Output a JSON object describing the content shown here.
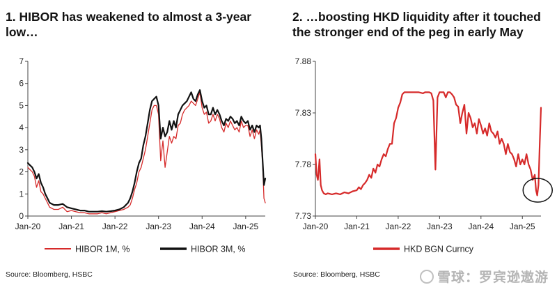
{
  "chart_data": [
    {
      "type": "line",
      "title": "1. HIBOR has weakened to almost a 3-year low…",
      "title_lines": [
        "1. HIBOR has weakened to almost a 3-year",
        "low…"
      ],
      "xlabel": "",
      "ylabel": "",
      "x_ticks": [
        "Jan-20",
        "Jan-21",
        "Jan-22",
        "Jan-23",
        "Jan-24",
        "Jan-25"
      ],
      "x_range": [
        2020.0,
        2025.45
      ],
      "ylim": [
        0,
        7
      ],
      "y_ticks": [
        "0",
        "1",
        "2",
        "3",
        "4",
        "5",
        "6",
        "7"
      ],
      "source": "Source: Bloomberg, HSBC",
      "series": [
        {
          "name": "HIBOR 1M, %",
          "color": "#d62a2a",
          "x": [
            2020.0,
            2020.05,
            2020.1,
            2020.15,
            2020.2,
            2020.25,
            2020.3,
            2020.35,
            2020.4,
            2020.45,
            2020.5,
            2020.6,
            2020.7,
            2020.8,
            2020.9,
            2021.0,
            2021.1,
            2021.2,
            2021.3,
            2021.4,
            2021.5,
            2021.6,
            2021.7,
            2021.8,
            2021.9,
            2022.0,
            2022.1,
            2022.2,
            2022.3,
            2022.35,
            2022.4,
            2022.45,
            2022.5,
            2022.55,
            2022.6,
            2022.65,
            2022.7,
            2022.75,
            2022.8,
            2022.85,
            2022.9,
            2022.95,
            2023.0,
            2023.05,
            2023.1,
            2023.15,
            2023.2,
            2023.25,
            2023.3,
            2023.35,
            2023.4,
            2023.45,
            2023.5,
            2023.55,
            2023.6,
            2023.65,
            2023.7,
            2023.75,
            2023.8,
            2023.85,
            2023.9,
            2023.95,
            2024.0,
            2024.05,
            2024.1,
            2024.15,
            2024.2,
            2024.25,
            2024.3,
            2024.35,
            2024.4,
            2024.45,
            2024.5,
            2024.55,
            2024.6,
            2024.65,
            2024.7,
            2024.75,
            2024.8,
            2024.85,
            2024.9,
            2024.95,
            2025.0,
            2025.05,
            2025.1,
            2025.15,
            2025.2,
            2025.25,
            2025.3,
            2025.33,
            2025.36,
            2025.39,
            2025.42,
            2025.45
          ],
          "y": [
            2.2,
            2.1,
            2.0,
            1.8,
            1.3,
            1.6,
            1.1,
            1.0,
            0.8,
            0.6,
            0.4,
            0.3,
            0.3,
            0.4,
            0.2,
            0.25,
            0.2,
            0.15,
            0.15,
            0.1,
            0.1,
            0.1,
            0.15,
            0.1,
            0.15,
            0.2,
            0.25,
            0.3,
            0.4,
            0.5,
            0.8,
            1.2,
            1.5,
            2.0,
            2.2,
            2.6,
            3.0,
            3.6,
            4.2,
            4.8,
            5.0,
            5.0,
            4.6,
            2.5,
            3.4,
            2.2,
            2.9,
            3.6,
            3.3,
            3.6,
            3.5,
            4.1,
            4.2,
            4.6,
            4.8,
            4.9,
            5.0,
            5.2,
            5.1,
            5.0,
            5.3,
            5.6,
            4.9,
            4.6,
            4.7,
            4.2,
            4.3,
            4.6,
            4.3,
            4.6,
            4.4,
            4.0,
            3.8,
            4.2,
            4.0,
            4.3,
            4.1,
            3.9,
            4.0,
            3.8,
            4.3,
            4.0,
            4.1,
            4.1,
            3.6,
            3.9,
            3.5,
            3.9,
            3.7,
            3.9,
            3.2,
            2.4,
            0.8,
            0.6
          ]
        },
        {
          "name": "HIBOR 3M, %",
          "color": "#111111",
          "x": [
            2020.0,
            2020.05,
            2020.1,
            2020.15,
            2020.2,
            2020.25,
            2020.3,
            2020.35,
            2020.4,
            2020.45,
            2020.5,
            2020.6,
            2020.7,
            2020.8,
            2020.9,
            2021.0,
            2021.1,
            2021.2,
            2021.3,
            2021.4,
            2021.5,
            2021.6,
            2021.7,
            2021.8,
            2021.9,
            2022.0,
            2022.1,
            2022.2,
            2022.3,
            2022.35,
            2022.4,
            2022.45,
            2022.5,
            2022.55,
            2022.6,
            2022.65,
            2022.7,
            2022.75,
            2022.8,
            2022.85,
            2022.9,
            2022.95,
            2023.0,
            2023.05,
            2023.1,
            2023.15,
            2023.2,
            2023.25,
            2023.3,
            2023.35,
            2023.4,
            2023.45,
            2023.5,
            2023.55,
            2023.6,
            2023.65,
            2023.7,
            2023.75,
            2023.8,
            2023.85,
            2023.9,
            2023.95,
            2024.0,
            2024.05,
            2024.1,
            2024.15,
            2024.2,
            2024.25,
            2024.3,
            2024.35,
            2024.4,
            2024.45,
            2024.5,
            2024.55,
            2024.6,
            2024.65,
            2024.7,
            2024.75,
            2024.8,
            2024.85,
            2024.9,
            2024.95,
            2025.0,
            2025.05,
            2025.1,
            2025.15,
            2025.2,
            2025.25,
            2025.3,
            2025.33,
            2025.36,
            2025.39,
            2025.42,
            2025.45
          ],
          "y": [
            2.4,
            2.3,
            2.2,
            2.0,
            1.7,
            1.9,
            1.5,
            1.3,
            1.0,
            0.8,
            0.6,
            0.5,
            0.5,
            0.55,
            0.4,
            0.35,
            0.3,
            0.25,
            0.25,
            0.2,
            0.2,
            0.2,
            0.22,
            0.2,
            0.22,
            0.25,
            0.3,
            0.4,
            0.6,
            0.8,
            1.1,
            1.5,
            2.0,
            2.4,
            2.6,
            3.2,
            3.6,
            4.2,
            4.8,
            5.2,
            5.3,
            5.4,
            5.0,
            3.5,
            4.0,
            3.6,
            3.8,
            4.3,
            3.9,
            4.3,
            4.0,
            4.6,
            4.8,
            5.0,
            5.1,
            5.2,
            5.4,
            5.6,
            5.3,
            5.2,
            5.5,
            5.7,
            5.2,
            4.9,
            5.0,
            4.6,
            4.6,
            4.9,
            4.6,
            4.8,
            4.6,
            4.3,
            4.1,
            4.4,
            4.3,
            4.5,
            4.4,
            4.2,
            4.3,
            4.1,
            4.5,
            4.3,
            4.2,
            4.3,
            3.9,
            4.1,
            3.8,
            4.1,
            4.0,
            4.1,
            3.5,
            2.5,
            1.4,
            1.7
          ]
        }
      ]
    },
    {
      "type": "line",
      "title": "2. …boosting HKD liquidity after it touched the stronger end of the peg in early May",
      "title_lines": [
        "2. …boosting HKD liquidity after it touched",
        "the stronger end of the peg in early May"
      ],
      "xlabel": "",
      "ylabel": "",
      "x_ticks": [
        "Jan-20",
        "Jan-21",
        "Jan-22",
        "Jan-23",
        "Jan-24",
        "Jan-25"
      ],
      "x_range": [
        2020.0,
        2025.45
      ],
      "ylim": [
        7.73,
        7.88
      ],
      "y_ticks": [
        "7.73",
        "7.78",
        "7.83",
        "7.88"
      ],
      "source": "Source: Bloomberg, HSBC",
      "annotation": "circle around early-2025 low near 7.75",
      "series": [
        {
          "name": "HKD BGN Curncy",
          "color": "#d62a2a",
          "x": [
            2020.0,
            2020.03,
            2020.06,
            2020.1,
            2020.13,
            2020.16,
            2020.2,
            2020.25,
            2020.3,
            2020.4,
            2020.5,
            2020.6,
            2020.7,
            2020.8,
            2020.9,
            2021.0,
            2021.05,
            2021.1,
            2021.15,
            2021.2,
            2021.25,
            2021.3,
            2021.35,
            2021.4,
            2021.45,
            2021.5,
            2021.55,
            2021.6,
            2021.65,
            2021.7,
            2021.75,
            2021.8,
            2021.85,
            2021.9,
            2021.95,
            2022.0,
            2022.05,
            2022.1,
            2022.15,
            2022.2,
            2022.3,
            2022.4,
            2022.5,
            2022.6,
            2022.65,
            2022.7,
            2022.75,
            2022.8,
            2022.85,
            2022.9,
            2022.95,
            2023.0,
            2023.05,
            2023.1,
            2023.15,
            2023.2,
            2023.25,
            2023.3,
            2023.35,
            2023.4,
            2023.45,
            2023.5,
            2023.55,
            2023.6,
            2023.65,
            2023.7,
            2023.75,
            2023.8,
            2023.85,
            2023.9,
            2023.95,
            2024.0,
            2024.05,
            2024.1,
            2024.15,
            2024.2,
            2024.25,
            2024.3,
            2024.35,
            2024.4,
            2024.45,
            2024.5,
            2024.55,
            2024.6,
            2024.65,
            2024.7,
            2024.75,
            2024.8,
            2024.85,
            2024.9,
            2024.95,
            2025.0,
            2025.05,
            2025.1,
            2025.15,
            2025.2,
            2025.25,
            2025.3,
            2025.33,
            2025.36,
            2025.39,
            2025.42,
            2025.45
          ],
          "y": [
            7.79,
            7.77,
            7.765,
            7.785,
            7.76,
            7.755,
            7.752,
            7.751,
            7.752,
            7.751,
            7.752,
            7.751,
            7.753,
            7.752,
            7.754,
            7.755,
            7.758,
            7.756,
            7.76,
            7.762,
            7.765,
            7.77,
            7.767,
            7.776,
            7.772,
            7.78,
            7.778,
            7.785,
            7.79,
            7.788,
            7.795,
            7.8,
            7.8,
            7.82,
            7.825,
            7.835,
            7.84,
            7.848,
            7.85,
            7.85,
            7.85,
            7.85,
            7.85,
            7.849,
            7.85,
            7.85,
            7.85,
            7.849,
            7.842,
            7.775,
            7.845,
            7.85,
            7.85,
            7.85,
            7.845,
            7.85,
            7.85,
            7.848,
            7.845,
            7.838,
            7.836,
            7.82,
            7.83,
            7.838,
            7.81,
            7.83,
            7.825,
            7.816,
            7.82,
            7.81,
            7.824,
            7.818,
            7.81,
            7.815,
            7.808,
            7.82,
            7.812,
            7.81,
            7.806,
            7.812,
            7.8,
            7.805,
            7.8,
            7.79,
            7.8,
            7.792,
            7.79,
            7.785,
            7.778,
            7.79,
            7.78,
            7.785,
            7.78,
            7.79,
            7.78,
            7.775,
            7.765,
            7.77,
            7.755,
            7.75,
            7.76,
            7.8,
            7.835
          ]
        }
      ]
    }
  ],
  "watermark": "雪球：罗宾逊遨游",
  "colors": {
    "red": "#d62a2a",
    "black": "#111111",
    "axis": "#444444"
  }
}
